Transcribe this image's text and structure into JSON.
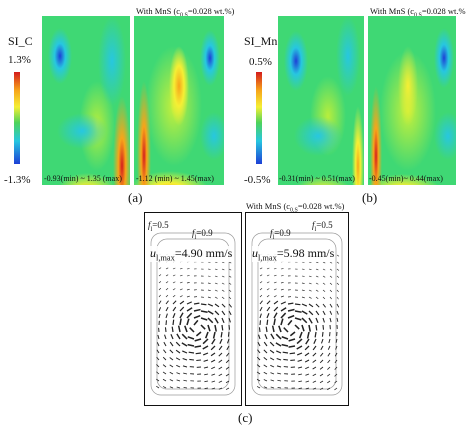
{
  "panel_a": {
    "header": "With MnS (c",
    "header_sub": "0,S",
    "header_tail": "=0.028 wt.%)",
    "scale_title": "SI_C",
    "scale_max": "1.3%",
    "scale_min": "-1.3%",
    "range_left": "-0.93(min) ~ 1.35 (max)",
    "range_right": "-1.12 (min) ~ 1.45(max)",
    "label": "(a)"
  },
  "panel_b": {
    "header": "With MnS (c",
    "header_sub": "0,S",
    "header_tail": "=0.028 wt.%",
    "scale_title": "SI_Mn",
    "scale_max": "0.5%",
    "scale_min": "-0.5%",
    "range_left": "-0.31(min) ~ 0.51(max)",
    "range_right": "-0.45(min)~ 0.44(max)",
    "label": "(b)"
  },
  "panel_c": {
    "header": "With MnS (c",
    "header_sub": "0,S",
    "header_tail": "=0.028 wt.%)",
    "fl_left_05": "=0.5",
    "fl_left_09": "=0.9",
    "fl_right_09": "=0.9",
    "fl_right_05": "=0.5",
    "fl_sym": "f",
    "fl_sub": "l",
    "u_left_val": "=4.90 mm/s",
    "u_right_val": "=5.98 mm/s",
    "u_sym": "u",
    "u_sub": "l,max",
    "label": "(c)"
  },
  "colors": {
    "scale_top": "#d41c1c",
    "scale_orange": "#f7a51a",
    "scale_yellow": "#f5ef34",
    "scale_green": "#4ed35a",
    "scale_cyan": "#27c7e0",
    "scale_blue": "#1d3fd6",
    "field_base": "#3fd874"
  }
}
